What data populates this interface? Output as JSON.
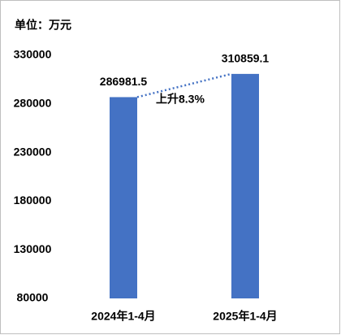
{
  "chart_data": {
    "type": "bar",
    "ylabel": "单位：万元",
    "categories": [
      "2024年1-4月",
      "2025年1-4月"
    ],
    "values": [
      286981.5,
      310859.1
    ],
    "color": "#4472c4",
    "ylim": [
      80000,
      330000
    ],
    "yticks": [
      80000,
      130000,
      180000,
      230000,
      280000,
      330000
    ],
    "grid": false,
    "annotation": "上升8.3%",
    "trend_line": true
  }
}
